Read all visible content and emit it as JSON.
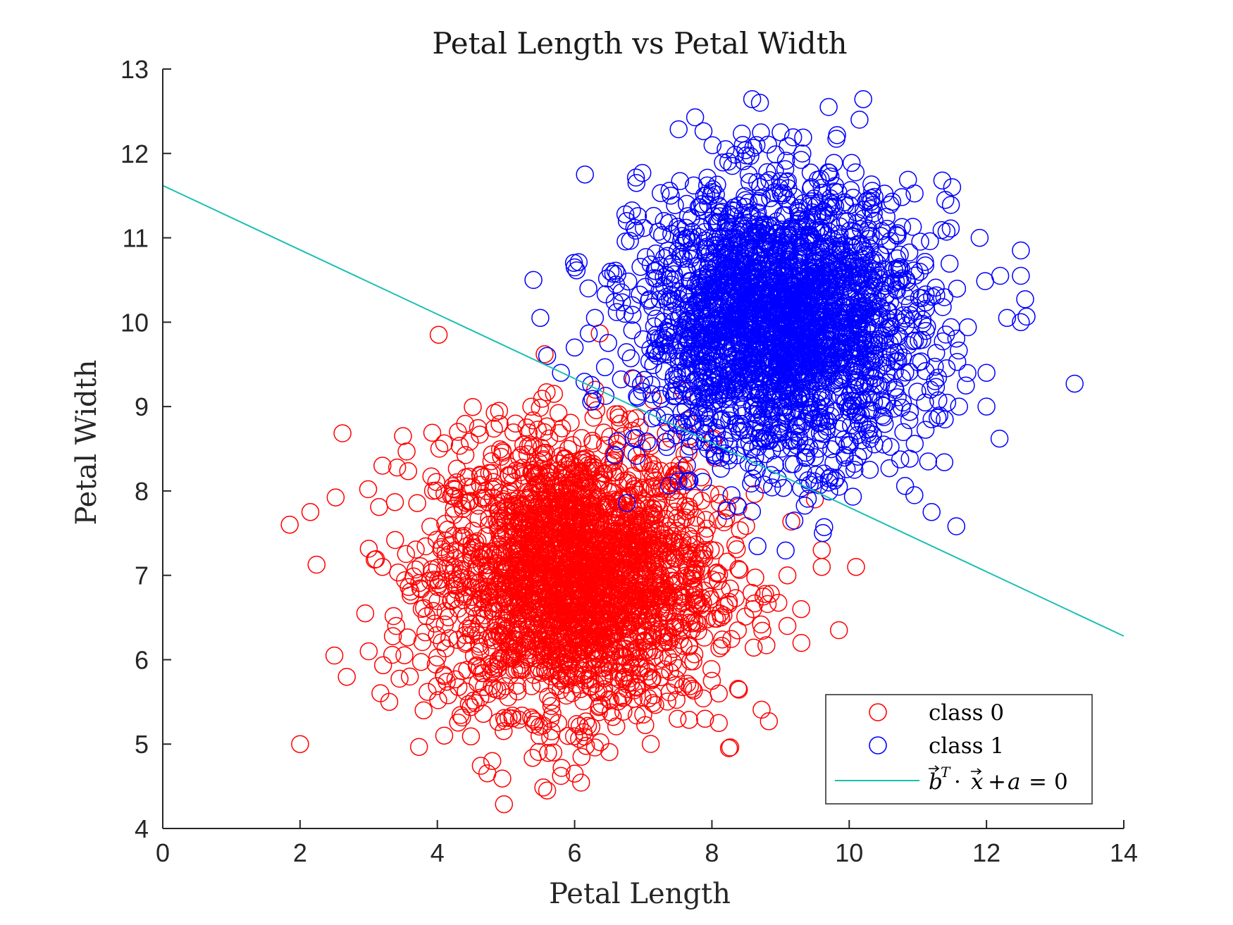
{
  "chart_data": {
    "type": "scatter",
    "title": "Petal Length vs Petal Width",
    "xlabel": "Petal Length",
    "ylabel": "Petal Width",
    "xlim": [
      0,
      14
    ],
    "ylim": [
      4,
      13
    ],
    "xticks": [
      0,
      2,
      4,
      6,
      8,
      10,
      12,
      14
    ],
    "yticks": [
      4,
      5,
      6,
      7,
      8,
      9,
      10,
      11,
      12,
      13
    ],
    "grid": false,
    "legend_position": "bottom-right",
    "series": [
      {
        "name": "class 0",
        "kind": "scatter",
        "marker": "circle-open",
        "color": "#ff0000",
        "center": [
          6.0,
          7.0
        ],
        "spread": [
          1.0,
          0.8
        ],
        "count": 2500,
        "points": [
          [
            1.85,
            7.6
          ],
          [
            2.15,
            7.75
          ],
          [
            2.0,
            5.0
          ],
          [
            2.5,
            6.05
          ],
          [
            3.0,
            6.1
          ],
          [
            3.2,
            8.3
          ],
          [
            3.5,
            8.65
          ],
          [
            3.3,
            5.5
          ],
          [
            4.3,
            8.7
          ],
          [
            4.8,
            4.8
          ],
          [
            4.9,
            8.95
          ],
          [
            5.6,
            4.45
          ],
          [
            6.0,
            4.65
          ],
          [
            6.1,
            4.85
          ],
          [
            5.7,
            9.15
          ],
          [
            6.3,
            9.2
          ],
          [
            9.1,
            7.0
          ],
          [
            9.6,
            7.3
          ],
          [
            9.6,
            7.1
          ],
          [
            10.1,
            7.1
          ],
          [
            9.85,
            6.35
          ],
          [
            9.1,
            6.4
          ],
          [
            9.3,
            6.6
          ],
          [
            9.5,
            7.9
          ],
          [
            8.6,
            6.6
          ],
          [
            7.5,
            5.3
          ],
          [
            7.9,
            5.3
          ],
          [
            8.1,
            5.25
          ],
          [
            8.1,
            5.6
          ],
          [
            8.0,
            5.75
          ],
          [
            7.0,
            5.35
          ],
          [
            3.8,
            5.4
          ],
          [
            4.1,
            5.1
          ],
          [
            3.6,
            5.8
          ],
          [
            3.4,
            6.4
          ],
          [
            2.95,
            6.55
          ],
          [
            3.2,
            7.1
          ]
        ]
      },
      {
        "name": "class 1",
        "kind": "scatter",
        "marker": "circle-open",
        "color": "#0000ff",
        "center": [
          9.0,
          10.0
        ],
        "spread": [
          1.0,
          0.8
        ],
        "count": 2500,
        "points": [
          [
            8.7,
            12.6
          ],
          [
            9.7,
            12.55
          ],
          [
            10.15,
            12.4
          ],
          [
            9.0,
            12.25
          ],
          [
            8.2,
            12.05
          ],
          [
            8.45,
            12.1
          ],
          [
            6.15,
            11.75
          ],
          [
            6.9,
            11.65
          ],
          [
            7.4,
            11.5
          ],
          [
            7.3,
            11.2
          ],
          [
            5.4,
            10.5
          ],
          [
            5.5,
            10.05
          ],
          [
            5.6,
            9.6
          ],
          [
            6.0,
            10.65
          ],
          [
            6.2,
            10.4
          ],
          [
            6.0,
            9.7
          ],
          [
            5.8,
            9.4
          ],
          [
            11.5,
            11.6
          ],
          [
            11.4,
            11.45
          ],
          [
            11.9,
            11.0
          ],
          [
            12.5,
            10.85
          ],
          [
            12.5,
            10.55
          ],
          [
            12.2,
            10.55
          ],
          [
            12.5,
            10.0
          ],
          [
            12.3,
            10.05
          ],
          [
            12.0,
            9.4
          ],
          [
            12.0,
            9.0
          ],
          [
            11.7,
            9.25
          ],
          [
            11.15,
            8.35
          ],
          [
            10.95,
            7.95
          ],
          [
            11.2,
            7.75
          ],
          [
            10.3,
            8.25
          ],
          [
            9.7,
            8.1
          ],
          [
            9.85,
            8.05
          ],
          [
            9.5,
            8.4
          ],
          [
            9.55,
            8.5
          ],
          [
            10.5,
            8.55
          ],
          [
            11.2,
            8.85
          ],
          [
            11.6,
            9.0
          ]
        ]
      },
      {
        "name": "b^T · x + a = 0",
        "kind": "line",
        "color": "#1abfb3",
        "x": [
          0,
          14
        ],
        "y": [
          11.62,
          6.28
        ]
      }
    ]
  },
  "legend": {
    "entries": [
      {
        "label": "class 0"
      },
      {
        "label": "class 1"
      }
    ]
  }
}
